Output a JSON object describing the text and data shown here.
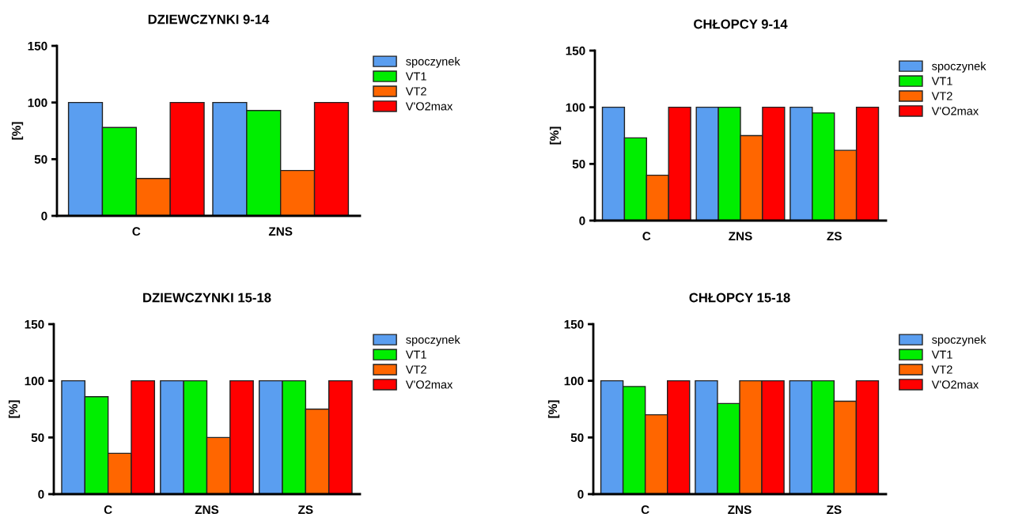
{
  "chart_data": [
    {
      "type": "bar",
      "title": "DZIEWCZYNKI 9-14",
      "ylabel": "[%]",
      "categories": [
        "C",
        "ZNS"
      ],
      "ylim": [
        0,
        150
      ],
      "yticks": [
        0,
        50,
        100,
        150
      ],
      "legend": "right",
      "grid": false,
      "series": [
        {
          "name": "spoczynek",
          "color": "#5a9ef0",
          "values": [
            100,
            100
          ]
        },
        {
          "name": "VT1",
          "color": "#00ee00",
          "values": [
            78,
            93
          ]
        },
        {
          "name": "VT2",
          "color": "#ff6600",
          "values": [
            33,
            40
          ]
        },
        {
          "name": "V'O2max",
          "color": "#ff0000",
          "values": [
            100,
            100
          ]
        }
      ]
    },
    {
      "type": "bar",
      "title": "CHŁOPCY 9-14",
      "ylabel": "[%]",
      "categories": [
        "C",
        "ZNS",
        "ZS"
      ],
      "ylim": [
        0,
        150
      ],
      "yticks": [
        0,
        50,
        100,
        150
      ],
      "legend": "right",
      "grid": false,
      "series": [
        {
          "name": "spoczynek",
          "color": "#5a9ef0",
          "values": [
            100,
            100,
            100
          ]
        },
        {
          "name": "VT1",
          "color": "#00ee00",
          "values": [
            73,
            100,
            95
          ]
        },
        {
          "name": "VT2",
          "color": "#ff6600",
          "values": [
            40,
            75,
            62
          ]
        },
        {
          "name": "V'O2max",
          "color": "#ff0000",
          "values": [
            100,
            100,
            100
          ]
        }
      ]
    },
    {
      "type": "bar",
      "title": "DZIEWCZYNKI 15-18",
      "ylabel": "[%]",
      "categories": [
        "C",
        "ZNS",
        "ZS"
      ],
      "ylim": [
        0,
        150
      ],
      "yticks": [
        0,
        50,
        100,
        150
      ],
      "legend": "right",
      "grid": false,
      "series": [
        {
          "name": "spoczynek",
          "color": "#5a9ef0",
          "values": [
            100,
            100,
            100
          ]
        },
        {
          "name": "VT1",
          "color": "#00ee00",
          "values": [
            86,
            100,
            100
          ]
        },
        {
          "name": "VT2",
          "color": "#ff6600",
          "values": [
            36,
            50,
            75
          ]
        },
        {
          "name": "V'O2max",
          "color": "#ff0000",
          "values": [
            100,
            100,
            100
          ]
        }
      ]
    },
    {
      "type": "bar",
      "title": "CHŁOPCY 15-18",
      "ylabel": "[%]",
      "categories": [
        "C",
        "ZNS",
        "ZS"
      ],
      "ylim": [
        0,
        150
      ],
      "yticks": [
        0,
        50,
        100,
        150
      ],
      "legend": "right",
      "grid": false,
      "series": [
        {
          "name": "spoczynek",
          "color": "#5a9ef0",
          "values": [
            100,
            100,
            100
          ]
        },
        {
          "name": "VT1",
          "color": "#00ee00",
          "values": [
            95,
            80,
            100
          ]
        },
        {
          "name": "VT2",
          "color": "#ff6600",
          "values": [
            70,
            100,
            82
          ]
        },
        {
          "name": "V'O2max",
          "color": "#ff0000",
          "values": [
            100,
            100,
            100
          ]
        }
      ]
    }
  ]
}
